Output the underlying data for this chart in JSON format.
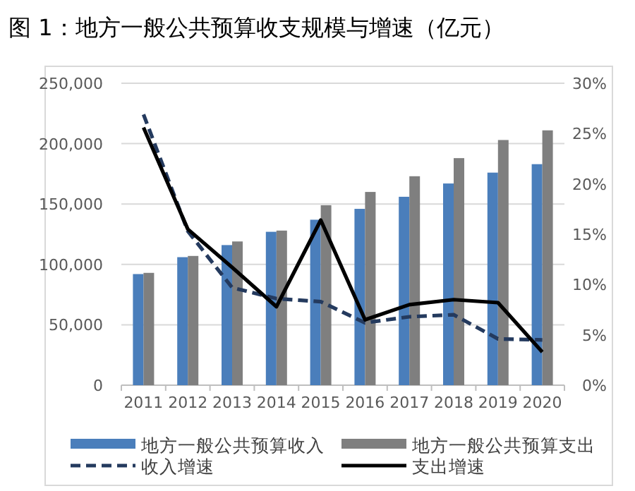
{
  "chart_data": {
    "type": "bar",
    "title": "图 1：地方一般公共预算收支规模与增速（亿元）",
    "categories": [
      "2011",
      "2012",
      "2013",
      "2014",
      "2015",
      "2016",
      "2017",
      "2018",
      "2019",
      "2020"
    ],
    "series": [
      {
        "name": "地方一般公共预算收入",
        "color": "#4a7ebb",
        "values": [
          92000,
          106000,
          116000,
          127000,
          137000,
          146000,
          156000,
          167000,
          176000,
          183000
        ]
      },
      {
        "name": "地方一般公共预算支出",
        "color": "#7f7f7f",
        "values": [
          93000,
          107000,
          119000,
          128000,
          149000,
          160000,
          173000,
          188000,
          203000,
          211000
        ]
      },
      {
        "name": "收入增速",
        "type": "line",
        "axis": "y2",
        "line_style": "dashed",
        "color": "#243a5e",
        "values": [
          26.9,
          15.3,
          9.7,
          8.6,
          8.3,
          6.2,
          6.8,
          7.0,
          4.6,
          4.5
        ]
      },
      {
        "name": "支出增速",
        "type": "line",
        "axis": "y2",
        "line_style": "solid",
        "color": "#000000",
        "values": [
          25.6,
          15.5,
          11.7,
          7.8,
          16.4,
          6.5,
          8.0,
          8.5,
          8.2,
          3.3
        ]
      }
    ],
    "ylim": [
      0,
      250000
    ],
    "yticks": [
      {
        "value": 0,
        "label": "0"
      },
      {
        "value": 50000,
        "label": "50,000"
      },
      {
        "value": 100000,
        "label": "100,000"
      },
      {
        "value": 150000,
        "label": "150,000"
      },
      {
        "value": 200000,
        "label": "200,000"
      },
      {
        "value": 250000,
        "label": "250,000"
      }
    ],
    "y2lim": [
      0,
      30
    ],
    "y2ticks": [
      {
        "value": 0,
        "label": "0%"
      },
      {
        "value": 5,
        "label": "5%"
      },
      {
        "value": 10,
        "label": "10%"
      },
      {
        "value": 15,
        "label": "15%"
      },
      {
        "value": 20,
        "label": "20%"
      },
      {
        "value": 25,
        "label": "25%"
      },
      {
        "value": 30,
        "label": "30%"
      }
    ],
    "grid": "y",
    "legend": "bottom"
  }
}
